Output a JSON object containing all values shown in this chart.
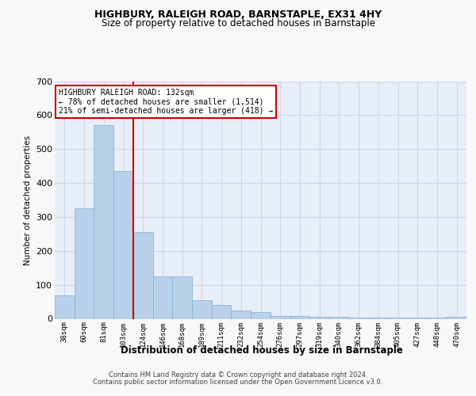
{
  "title": "HIGHBURY, RALEIGH ROAD, BARNSTAPLE, EX31 4HY",
  "subtitle": "Size of property relative to detached houses in Barnstaple",
  "xlabel": "Distribution of detached houses by size in Barnstaple",
  "ylabel": "Number of detached properties",
  "footer_line1": "Contains HM Land Registry data © Crown copyright and database right 2024.",
  "footer_line2": "Contains public sector information licensed under the Open Government Licence v3.0.",
  "annotation_line1": "HIGHBURY RALEIGH ROAD: 132sqm",
  "annotation_line2": "← 78% of detached houses are smaller (1,514)",
  "annotation_line3": "21% of semi-detached houses are larger (418) →",
  "bar_color": "#b8d0e8",
  "bar_edge_color": "#7aafd4",
  "grid_color": "#ccd6e8",
  "background_color": "#e8eef8",
  "vline_color": "#cc0000",
  "annotation_box_facecolor": "#ffffff",
  "annotation_box_edgecolor": "#cc0000",
  "categories": [
    "38sqm",
    "60sqm",
    "81sqm",
    "103sqm",
    "124sqm",
    "146sqm",
    "168sqm",
    "189sqm",
    "211sqm",
    "232sqm",
    "254sqm",
    "276sqm",
    "297sqm",
    "319sqm",
    "340sqm",
    "362sqm",
    "384sqm",
    "405sqm",
    "427sqm",
    "448sqm",
    "470sqm"
  ],
  "values": [
    68,
    325,
    570,
    435,
    255,
    125,
    125,
    55,
    40,
    25,
    20,
    8,
    8,
    5,
    5,
    4,
    4,
    4,
    4,
    4,
    5
  ],
  "vline_x": 3.5,
  "ylim": [
    0,
    700
  ],
  "yticks": [
    0,
    100,
    200,
    300,
    400,
    500,
    600,
    700
  ],
  "title_fontsize": 9,
  "subtitle_fontsize": 8.5
}
